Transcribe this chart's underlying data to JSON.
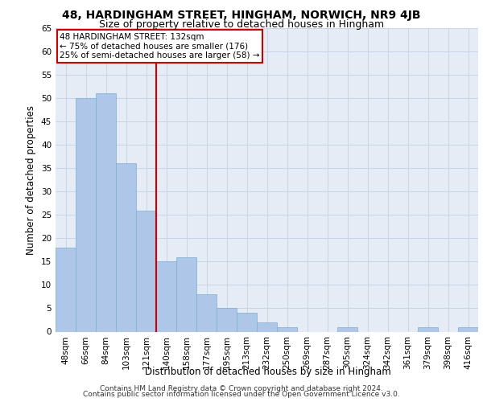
{
  "title_main": "48, HARDINGHAM STREET, HINGHAM, NORWICH, NR9 4JB",
  "title_sub": "Size of property relative to detached houses in Hingham",
  "xlabel": "Distribution of detached houses by size in Hingham",
  "ylabel": "Number of detached properties",
  "categories": [
    "48sqm",
    "66sqm",
    "84sqm",
    "103sqm",
    "121sqm",
    "140sqm",
    "158sqm",
    "177sqm",
    "195sqm",
    "213sqm",
    "232sqm",
    "250sqm",
    "269sqm",
    "287sqm",
    "305sqm",
    "324sqm",
    "342sqm",
    "361sqm",
    "379sqm",
    "398sqm",
    "416sqm"
  ],
  "values": [
    18,
    50,
    51,
    36,
    26,
    15,
    16,
    8,
    5,
    4,
    2,
    1,
    0,
    0,
    1,
    0,
    0,
    0,
    1,
    0,
    1
  ],
  "bar_color": "#aec6e8",
  "bar_edgecolor": "#7aafd4",
  "vline_x": 4.5,
  "vline_color": "#cc0000",
  "annotation_box_text": "48 HARDINGHAM STREET: 132sqm\n← 75% of detached houses are smaller (176)\n25% of semi-detached houses are larger (58) →",
  "annotation_box_color": "#cc0000",
  "grid_color": "#c8d4e8",
  "bg_color": "#e6ecf6",
  "ylim": [
    0,
    65
  ],
  "footer1": "Contains HM Land Registry data © Crown copyright and database right 2024.",
  "footer2": "Contains public sector information licensed under the Open Government Licence v3.0.",
  "title_fontsize": 10,
  "subtitle_fontsize": 9,
  "label_fontsize": 8.5,
  "tick_fontsize": 7.5,
  "footer_fontsize": 6.5
}
